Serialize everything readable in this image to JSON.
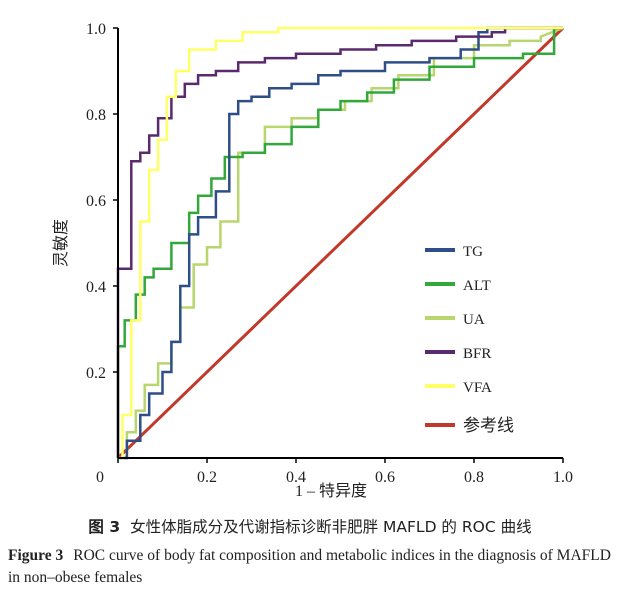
{
  "chart_data": {
    "type": "line",
    "xlabel": "1 – 特异度",
    "ylabel": "灵敏度",
    "xlim": [
      0,
      1.0
    ],
    "ylim": [
      0,
      1.0
    ],
    "xticks": [
      "0",
      "0.2",
      "0.4",
      "0.6",
      "0.8",
      "1.0"
    ],
    "yticks": [
      "0.2",
      "0.4",
      "0.6",
      "0.8",
      "1.0"
    ],
    "legend_position": "bottom-right",
    "grid": false,
    "series": [
      {
        "name": "TG",
        "color": "#2d4e86",
        "x": [
          0,
          0.02,
          0.02,
          0.05,
          0.05,
          0.07,
          0.07,
          0.1,
          0.1,
          0.12,
          0.12,
          0.14,
          0.14,
          0.16,
          0.16,
          0.18,
          0.18,
          0.22,
          0.22,
          0.25,
          0.25,
          0.27,
          0.27,
          0.3,
          0.3,
          0.34,
          0.34,
          0.39,
          0.39,
          0.45,
          0.45,
          0.5,
          0.5,
          0.6,
          0.6,
          0.7,
          0.7,
          0.77,
          0.77,
          0.81,
          0.81,
          0.83,
          0.83,
          1.0
        ],
        "y": [
          0,
          0,
          0.04,
          0.04,
          0.1,
          0.1,
          0.15,
          0.15,
          0.2,
          0.2,
          0.27,
          0.27,
          0.4,
          0.4,
          0.52,
          0.52,
          0.56,
          0.56,
          0.62,
          0.62,
          0.8,
          0.8,
          0.83,
          0.83,
          0.84,
          0.84,
          0.86,
          0.86,
          0.87,
          0.87,
          0.89,
          0.89,
          0.9,
          0.9,
          0.92,
          0.92,
          0.93,
          0.93,
          0.95,
          0.95,
          0.99,
          0.99,
          1.0,
          1.0
        ]
      },
      {
        "name": "ALT",
        "color": "#32a83a",
        "x": [
          0,
          0,
          0.015,
          0.015,
          0.04,
          0.04,
          0.06,
          0.06,
          0.08,
          0.08,
          0.12,
          0.12,
          0.16,
          0.16,
          0.18,
          0.18,
          0.21,
          0.21,
          0.24,
          0.24,
          0.28,
          0.28,
          0.33,
          0.33,
          0.39,
          0.39,
          0.45,
          0.45,
          0.5,
          0.5,
          0.56,
          0.56,
          0.62,
          0.62,
          0.7,
          0.7,
          0.8,
          0.8,
          0.91,
          0.91,
          0.98,
          0.98,
          1.0
        ],
        "y": [
          0,
          0.26,
          0.26,
          0.32,
          0.32,
          0.38,
          0.38,
          0.42,
          0.42,
          0.44,
          0.44,
          0.5,
          0.5,
          0.57,
          0.57,
          0.61,
          0.61,
          0.65,
          0.65,
          0.7,
          0.7,
          0.71,
          0.71,
          0.73,
          0.73,
          0.77,
          0.77,
          0.81,
          0.81,
          0.83,
          0.83,
          0.85,
          0.85,
          0.88,
          0.88,
          0.91,
          0.91,
          0.93,
          0.93,
          0.94,
          0.94,
          1.0,
          1.0
        ]
      },
      {
        "name": "UA",
        "color": "#b9d66e",
        "x": [
          0,
          0.02,
          0.02,
          0.04,
          0.04,
          0.06,
          0.06,
          0.09,
          0.09,
          0.12,
          0.12,
          0.14,
          0.14,
          0.17,
          0.17,
          0.2,
          0.2,
          0.23,
          0.23,
          0.27,
          0.27,
          0.33,
          0.33,
          0.39,
          0.39,
          0.45,
          0.45,
          0.51,
          0.51,
          0.57,
          0.57,
          0.63,
          0.63,
          0.71,
          0.71,
          0.8,
          0.8,
          0.88,
          0.88,
          0.95,
          0.95,
          1.0
        ],
        "y": [
          0,
          0,
          0.06,
          0.06,
          0.11,
          0.11,
          0.17,
          0.17,
          0.22,
          0.22,
          0.27,
          0.27,
          0.35,
          0.35,
          0.45,
          0.45,
          0.49,
          0.49,
          0.55,
          0.55,
          0.71,
          0.71,
          0.77,
          0.77,
          0.79,
          0.79,
          0.81,
          0.81,
          0.83,
          0.83,
          0.86,
          0.86,
          0.89,
          0.89,
          0.93,
          0.93,
          0.96,
          0.96,
          0.97,
          0.97,
          0.98,
          1.0
        ]
      },
      {
        "name": "BFR",
        "color": "#5a2a6e",
        "x": [
          0,
          0,
          0.03,
          0.03,
          0.05,
          0.05,
          0.07,
          0.07,
          0.09,
          0.09,
          0.12,
          0.12,
          0.15,
          0.15,
          0.18,
          0.18,
          0.22,
          0.22,
          0.27,
          0.27,
          0.33,
          0.33,
          0.4,
          0.4,
          0.5,
          0.5,
          0.58,
          0.58,
          0.66,
          0.66,
          0.76,
          0.76,
          0.84,
          0.84,
          0.87,
          0.87,
          1.0
        ],
        "y": [
          0,
          0.44,
          0.44,
          0.69,
          0.69,
          0.71,
          0.71,
          0.75,
          0.75,
          0.79,
          0.79,
          0.84,
          0.84,
          0.87,
          0.87,
          0.89,
          0.89,
          0.9,
          0.9,
          0.92,
          0.92,
          0.93,
          0.93,
          0.94,
          0.94,
          0.95,
          0.95,
          0.96,
          0.96,
          0.97,
          0.97,
          0.98,
          0.98,
          0.99,
          0.99,
          1.0,
          1.0
        ]
      },
      {
        "name": "VFA",
        "color": "#ffff66",
        "x": [
          0,
          0.01,
          0.01,
          0.03,
          0.03,
          0.05,
          0.05,
          0.07,
          0.07,
          0.09,
          0.09,
          0.11,
          0.11,
          0.13,
          0.13,
          0.16,
          0.16,
          0.22,
          0.22,
          0.28,
          0.28,
          0.36,
          0.36,
          0.45,
          0.45,
          1.0
        ],
        "y": [
          0,
          0,
          0.1,
          0.1,
          0.32,
          0.32,
          0.55,
          0.55,
          0.67,
          0.67,
          0.74,
          0.74,
          0.84,
          0.84,
          0.9,
          0.9,
          0.95,
          0.95,
          0.97,
          0.97,
          0.99,
          0.99,
          1.0,
          1.0,
          1.0,
          1.0
        ]
      },
      {
        "name": "参考线",
        "color": "#c0392b",
        "x": [
          0,
          1.0
        ],
        "y": [
          0,
          1.0
        ]
      }
    ]
  },
  "caption": {
    "cn_label": "图 3",
    "cn_text": "女性体脂成分及代谢指标诊断非肥胖 MAFLD 的 ROC 曲线",
    "en_label": "Figure 3",
    "en_text": "ROC curve of body fat composition and metabolic indices in the diagnosis of MAFLD in non–obese females"
  }
}
